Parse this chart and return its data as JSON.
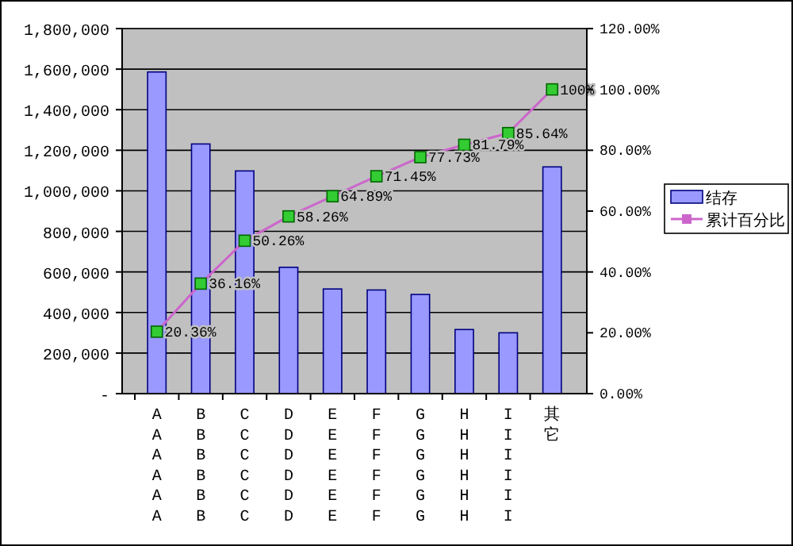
{
  "chart_data": {
    "type": "bar",
    "categories": [
      "AAAAAA",
      "BBBBBB",
      "CCCCCC",
      "DDDDDD",
      "EEEEEE",
      "FFFFFF",
      "GGGGGG",
      "HHHHHH",
      "IIIIII",
      "其它"
    ],
    "series": [
      {
        "name": "结存",
        "color": "#9999ff",
        "values": [
          1586000,
          1231000,
          1098000,
          623000,
          516000,
          511000,
          489000,
          316000,
          300000,
          1118000
        ]
      },
      {
        "name": "累计百分比",
        "type": "line",
        "axis": "y2",
        "color": "#cc66cc",
        "marker": "square",
        "values": [
          20.36,
          36.16,
          50.26,
          58.26,
          64.89,
          71.45,
          77.73,
          81.79,
          85.64,
          100
        ],
        "value_labels": [
          "20.36%",
          "36.16%",
          "50.26%",
          "58.26%",
          "64.89%",
          "71.45%",
          "77.73%",
          "81.79%",
          "85.64%",
          "100%"
        ]
      }
    ],
    "ylim": [
      0,
      1800000
    ],
    "yticks": [
      {
        "value": 0,
        "label": "-"
      },
      {
        "value": 200000,
        "label": "200,000"
      },
      {
        "value": 400000,
        "label": "400,000"
      },
      {
        "value": 600000,
        "label": "600,000"
      },
      {
        "value": 800000,
        "label": "800,000"
      },
      {
        "value": 1000000,
        "label": "1,000,000"
      },
      {
        "value": 1200000,
        "label": "1,200,000"
      },
      {
        "value": 1400000,
        "label": "1,400,000"
      },
      {
        "value": 1600000,
        "label": "1,600,000"
      },
      {
        "value": 1800000,
        "label": "1,800,000"
      }
    ],
    "y2lim": [
      0,
      120
    ],
    "y2ticks": [
      {
        "value": 0,
        "label": "0.00%"
      },
      {
        "value": 20,
        "label": "20.00%"
      },
      {
        "value": 40,
        "label": "40.00%"
      },
      {
        "value": 60,
        "label": "60.00%"
      },
      {
        "value": 80,
        "label": "80.00%"
      },
      {
        "value": 100,
        "label": "100.00%"
      },
      {
        "value": 120,
        "label": "120.00%"
      }
    ],
    "grid": "y",
    "legend": "right"
  }
}
